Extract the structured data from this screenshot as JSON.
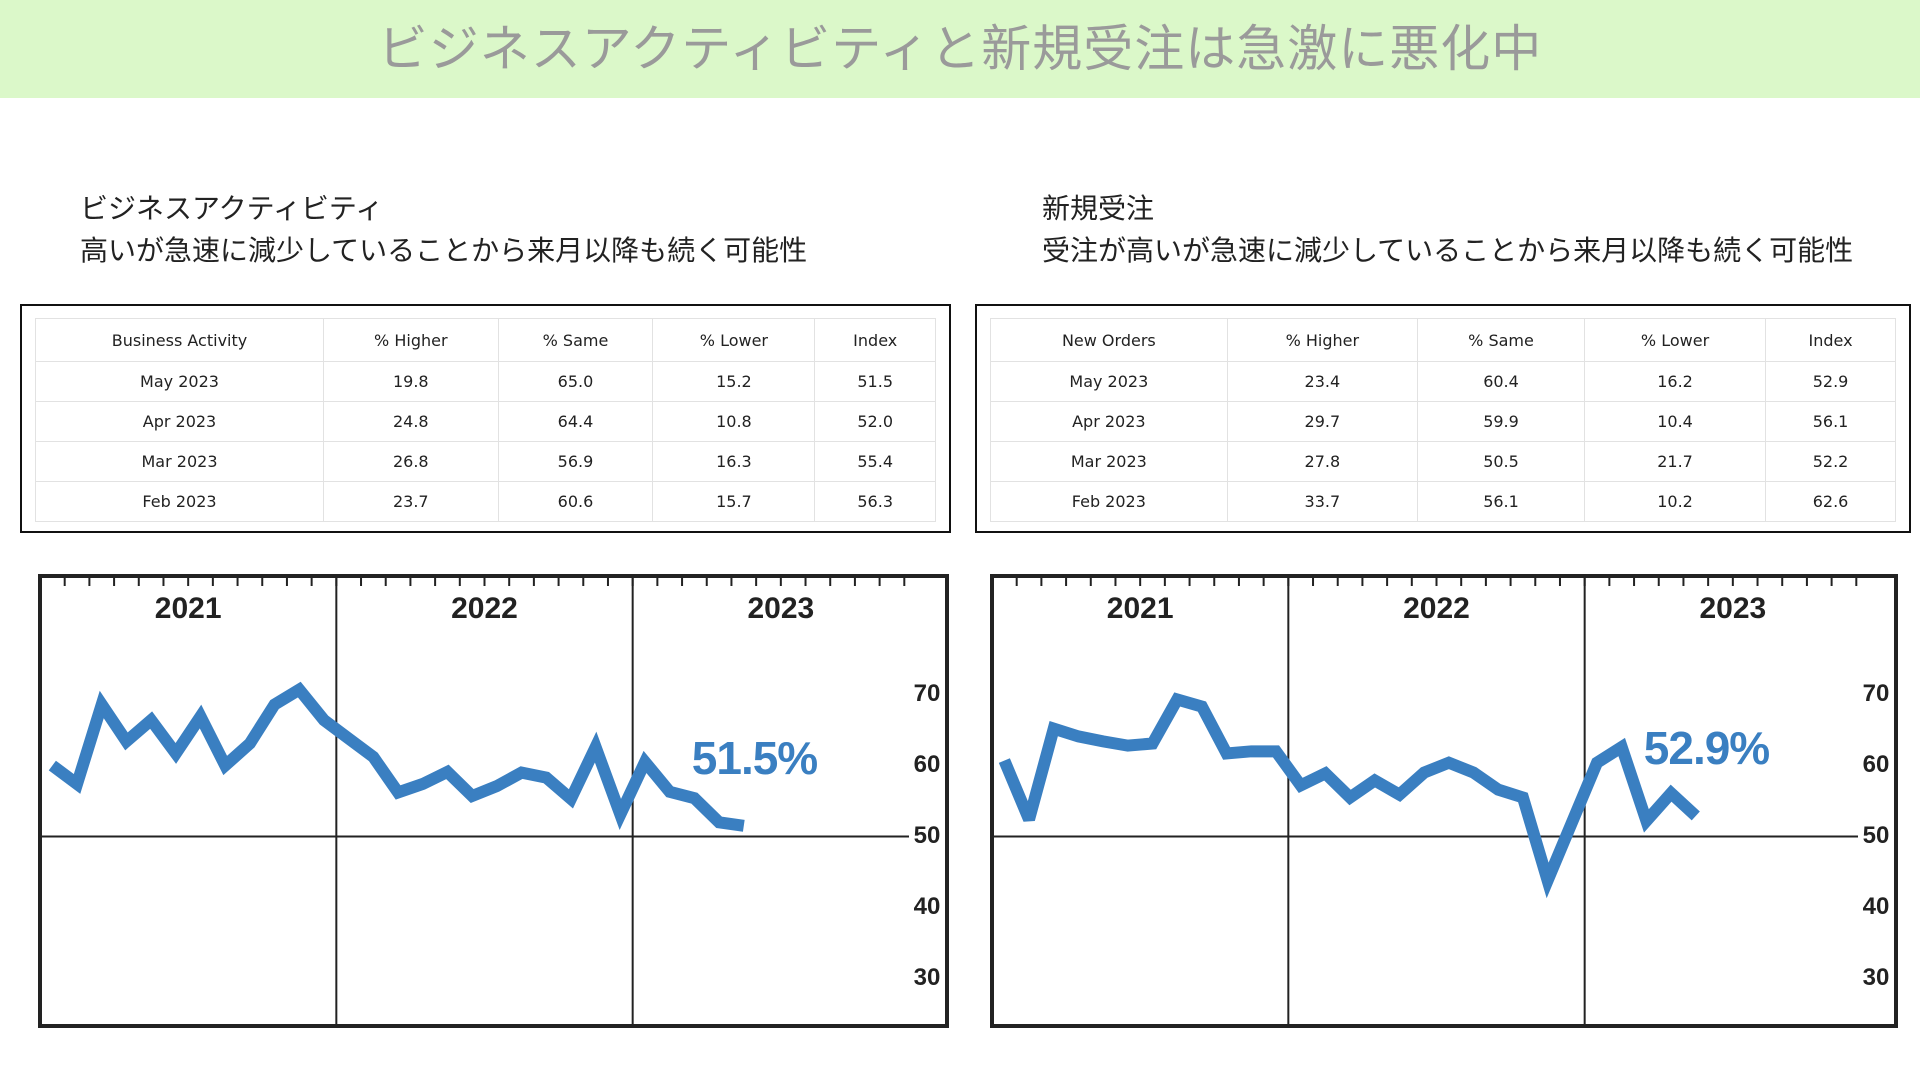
{
  "header": {
    "title": "ビジネスアクティビティと新規受注は急激に悪化中"
  },
  "sections": [
    {
      "heading": "ビジネスアクティビティ",
      "note": "高いが急速に減少していることから来月以降も続く可能性",
      "table": {
        "headers": [
          "Business Activity",
          "% Higher",
          "% Same",
          "% Lower",
          "Index"
        ],
        "rows": [
          [
            "May 2023",
            "19.8",
            "65.0",
            "15.2",
            "51.5"
          ],
          [
            "Apr 2023",
            "24.8",
            "64.4",
            "10.8",
            "52.0"
          ],
          [
            "Mar 2023",
            "26.8",
            "56.9",
            "16.3",
            "55.4"
          ],
          [
            "Feb 2023",
            "23.7",
            "60.6",
            "15.7",
            "56.3"
          ]
        ]
      }
    },
    {
      "heading": "新規受注",
      "note": "受注が高いが急速に減少していることから来月以降も続く可能性",
      "table": {
        "headers": [
          "New Orders",
          "% Higher",
          "% Same",
          "% Lower",
          "Index"
        ],
        "rows": [
          [
            "May 2023",
            "23.4",
            "60.4",
            "16.2",
            "52.9"
          ],
          [
            "Apr 2023",
            "29.7",
            "59.9",
            "10.4",
            "56.1"
          ],
          [
            "Mar 2023",
            "27.8",
            "50.5",
            "21.7",
            "52.2"
          ],
          [
            "Feb 2023",
            "33.7",
            "56.1",
            "10.2",
            "62.6"
          ]
        ]
      }
    }
  ],
  "chart_data": [
    {
      "type": "line",
      "xlim": [
        0,
        36
      ],
      "xminor_step": 1,
      "xticks": [
        {
          "value": 0,
          "label": "2021"
        },
        {
          "value": 12,
          "label": "2022"
        },
        {
          "value": 24,
          "label": "2023"
        }
      ],
      "ylim": [
        23.3,
        86.7
      ],
      "yticks": [
        30,
        40,
        50,
        60,
        70
      ],
      "refline": 50,
      "color": "#3a7fc1",
      "x": [
        0.5,
        1.5,
        2.5,
        3.5,
        4.5,
        5.5,
        6.5,
        7.5,
        8.5,
        9.5,
        10.5,
        11.5,
        12.5,
        13.5,
        14.5,
        15.5,
        16.5,
        17.5,
        18.5,
        19.5,
        20.5,
        21.5,
        22.5,
        23.5,
        24.5,
        25.5,
        26.5,
        27.5,
        28.5
      ],
      "values": [
        60,
        57.4,
        68.6,
        63.4,
        66.4,
        61.7,
        66.9,
        60,
        63.1,
        68.6,
        70.7,
        66.4,
        63.8,
        61.2,
        56.2,
        57.4,
        59.1,
        55.7,
        57.1,
        59.0,
        58.3,
        55.3,
        62.6,
        53.1,
        60.5,
        56.3,
        55.4,
        52.0,
        51.5
      ],
      "annotation": "51.5%"
    },
    {
      "type": "line",
      "xlim": [
        0,
        36
      ],
      "xminor_step": 1,
      "xticks": [
        {
          "value": 0,
          "label": "2021"
        },
        {
          "value": 12,
          "label": "2022"
        },
        {
          "value": 24,
          "label": "2023"
        }
      ],
      "ylim": [
        23.3,
        86.7
      ],
      "yticks": [
        30,
        40,
        50,
        60,
        70
      ],
      "refline": 50,
      "color": "#3a7fc1",
      "x": [
        0.5,
        1.5,
        2.5,
        3.5,
        4.5,
        5.5,
        6.5,
        7.5,
        8.5,
        9.5,
        10.5,
        11.5,
        12.5,
        13.5,
        14.5,
        15.5,
        16.5,
        17.5,
        18.5,
        19.5,
        20.5,
        21.5,
        22.5,
        23.5,
        24.5,
        25.5,
        26.5,
        27.5,
        28.5
      ],
      "values": [
        60.7,
        52.4,
        65.2,
        64.1,
        63.4,
        62.8,
        63.1,
        69.3,
        68.3,
        61.7,
        62.0,
        62.0,
        57.2,
        58.9,
        55.5,
        57.9,
        55.9,
        59,
        60.4,
        59,
        56.6,
        55.5,
        43.8,
        52.1,
        60.4,
        62.6,
        52.2,
        56.1,
        52.9
      ],
      "annotation": "52.9%"
    }
  ]
}
